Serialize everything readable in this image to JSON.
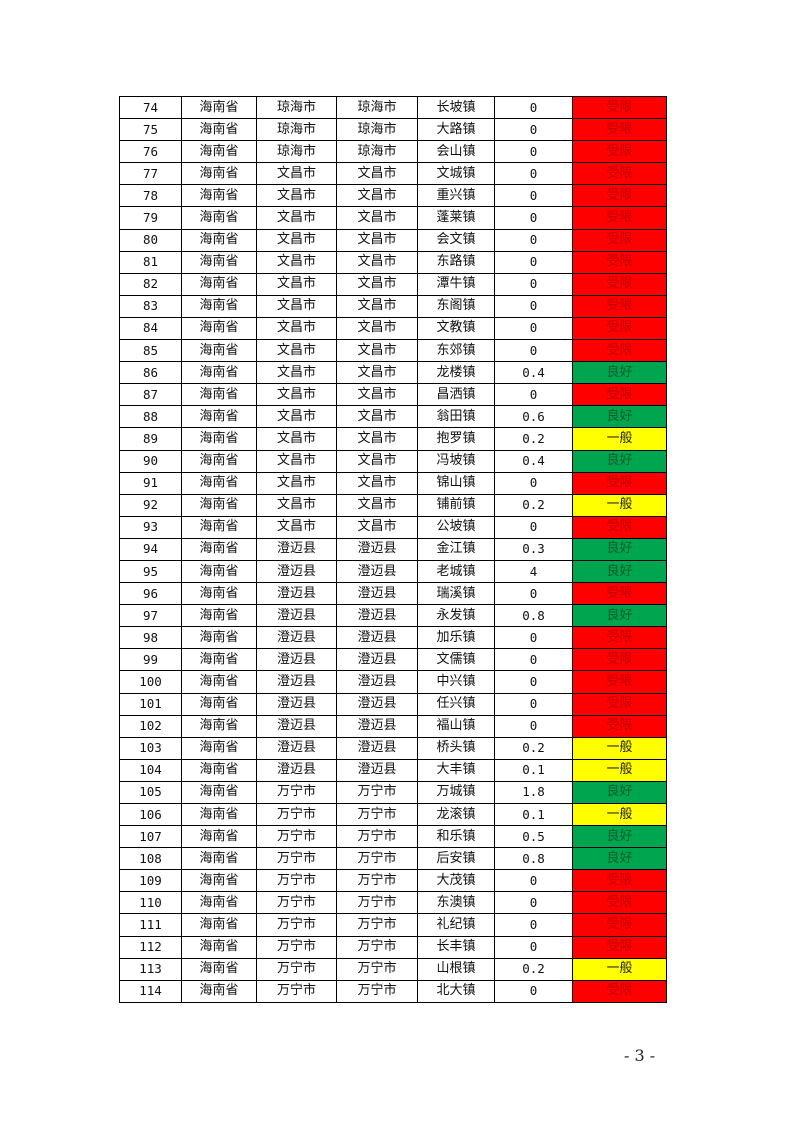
{
  "status_colors": {
    "受限": {
      "bg": "#ff0000",
      "fg": "#c00000"
    },
    "良好": {
      "bg": "#00a550",
      "fg": "#0b5d2a"
    },
    "一般": {
      "bg": "#ffff00",
      "fg": "#222222"
    }
  },
  "rows": [
    [
      "74",
      "海南省",
      "琼海市",
      "琼海市",
      "长坡镇",
      "0",
      "受限"
    ],
    [
      "75",
      "海南省",
      "琼海市",
      "琼海市",
      "大路镇",
      "0",
      "受限"
    ],
    [
      "76",
      "海南省",
      "琼海市",
      "琼海市",
      "会山镇",
      "0",
      "受限"
    ],
    [
      "77",
      "海南省",
      "文昌市",
      "文昌市",
      "文城镇",
      "0",
      "受限"
    ],
    [
      "78",
      "海南省",
      "文昌市",
      "文昌市",
      "重兴镇",
      "0",
      "受限"
    ],
    [
      "79",
      "海南省",
      "文昌市",
      "文昌市",
      "蓬莱镇",
      "0",
      "受限"
    ],
    [
      "80",
      "海南省",
      "文昌市",
      "文昌市",
      "会文镇",
      "0",
      "受限"
    ],
    [
      "81",
      "海南省",
      "文昌市",
      "文昌市",
      "东路镇",
      "0",
      "受限"
    ],
    [
      "82",
      "海南省",
      "文昌市",
      "文昌市",
      "潭牛镇",
      "0",
      "受限"
    ],
    [
      "83",
      "海南省",
      "文昌市",
      "文昌市",
      "东阁镇",
      "0",
      "受限"
    ],
    [
      "84",
      "海南省",
      "文昌市",
      "文昌市",
      "文教镇",
      "0",
      "受限"
    ],
    [
      "85",
      "海南省",
      "文昌市",
      "文昌市",
      "东郊镇",
      "0",
      "受限"
    ],
    [
      "86",
      "海南省",
      "文昌市",
      "文昌市",
      "龙楼镇",
      "0.4",
      "良好"
    ],
    [
      "87",
      "海南省",
      "文昌市",
      "文昌市",
      "昌洒镇",
      "0",
      "受限"
    ],
    [
      "88",
      "海南省",
      "文昌市",
      "文昌市",
      "翁田镇",
      "0.6",
      "良好"
    ],
    [
      "89",
      "海南省",
      "文昌市",
      "文昌市",
      "抱罗镇",
      "0.2",
      "一般"
    ],
    [
      "90",
      "海南省",
      "文昌市",
      "文昌市",
      "冯坡镇",
      "0.4",
      "良好"
    ],
    [
      "91",
      "海南省",
      "文昌市",
      "文昌市",
      "锦山镇",
      "0",
      "受限"
    ],
    [
      "92",
      "海南省",
      "文昌市",
      "文昌市",
      "铺前镇",
      "0.2",
      "一般"
    ],
    [
      "93",
      "海南省",
      "文昌市",
      "文昌市",
      "公坡镇",
      "0",
      "受限"
    ],
    [
      "94",
      "海南省",
      "澄迈县",
      "澄迈县",
      "金江镇",
      "0.3",
      "良好"
    ],
    [
      "95",
      "海南省",
      "澄迈县",
      "澄迈县",
      "老城镇",
      "4",
      "良好"
    ],
    [
      "96",
      "海南省",
      "澄迈县",
      "澄迈县",
      "瑞溪镇",
      "0",
      "受限"
    ],
    [
      "97",
      "海南省",
      "澄迈县",
      "澄迈县",
      "永发镇",
      "0.8",
      "良好"
    ],
    [
      "98",
      "海南省",
      "澄迈县",
      "澄迈县",
      "加乐镇",
      "0",
      "受限"
    ],
    [
      "99",
      "海南省",
      "澄迈县",
      "澄迈县",
      "文儒镇",
      "0",
      "受限"
    ],
    [
      "100",
      "海南省",
      "澄迈县",
      "澄迈县",
      "中兴镇",
      "0",
      "受限"
    ],
    [
      "101",
      "海南省",
      "澄迈县",
      "澄迈县",
      "任兴镇",
      "0",
      "受限"
    ],
    [
      "102",
      "海南省",
      "澄迈县",
      "澄迈县",
      "福山镇",
      "0",
      "受限"
    ],
    [
      "103",
      "海南省",
      "澄迈县",
      "澄迈县",
      "桥头镇",
      "0.2",
      "一般"
    ],
    [
      "104",
      "海南省",
      "澄迈县",
      "澄迈县",
      "大丰镇",
      "0.1",
      "一般"
    ],
    [
      "105",
      "海南省",
      "万宁市",
      "万宁市",
      "万城镇",
      "1.8",
      "良好"
    ],
    [
      "106",
      "海南省",
      "万宁市",
      "万宁市",
      "龙滚镇",
      "0.1",
      "一般"
    ],
    [
      "107",
      "海南省",
      "万宁市",
      "万宁市",
      "和乐镇",
      "0.5",
      "良好"
    ],
    [
      "108",
      "海南省",
      "万宁市",
      "万宁市",
      "后安镇",
      "0.8",
      "良好"
    ],
    [
      "109",
      "海南省",
      "万宁市",
      "万宁市",
      "大茂镇",
      "0",
      "受限"
    ],
    [
      "110",
      "海南省",
      "万宁市",
      "万宁市",
      "东澳镇",
      "0",
      "受限"
    ],
    [
      "111",
      "海南省",
      "万宁市",
      "万宁市",
      "礼纪镇",
      "0",
      "受限"
    ],
    [
      "112",
      "海南省",
      "万宁市",
      "万宁市",
      "长丰镇",
      "0",
      "受限"
    ],
    [
      "113",
      "海南省",
      "万宁市",
      "万宁市",
      "山根镇",
      "0.2",
      "一般"
    ],
    [
      "114",
      "海南省",
      "万宁市",
      "万宁市",
      "北大镇",
      "0",
      "受限"
    ]
  ],
  "footer": {
    "page_number": "- 3 -"
  }
}
